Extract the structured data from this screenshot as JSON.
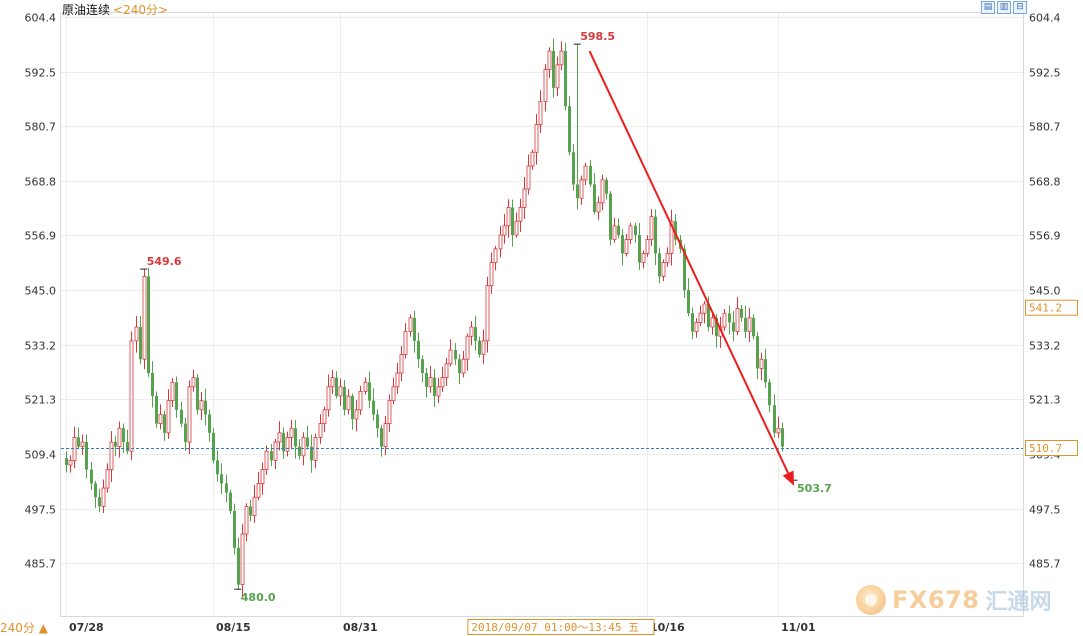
{
  "header": {
    "instrument": "原油连续",
    "period": "<240分>",
    "toolbar_icons": [
      "chart-type-icon",
      "indicator-icon",
      "zoom-icon"
    ]
  },
  "period_selector": {
    "label": "240分",
    "arrow": "▲"
  },
  "watermark": {
    "brand": "FX678",
    "cn": "汇通网"
  },
  "colors": {
    "up": "#d8383b",
    "down": "#55a34f",
    "grid": "#ececec",
    "current_line": "#2b7fc1",
    "arrow": "#ee1c1c",
    "axis_text": "#333333",
    "accent": "#e0932d"
  },
  "chart_data": {
    "type": "candlestick",
    "ylim": [
      475.0,
      607.0
    ],
    "y_ticks": [
      "604.4",
      "592.5",
      "580.7",
      "568.8",
      "556.9",
      "545.0",
      "533.2",
      "521.3",
      "509.4",
      "497.5",
      "485.7"
    ],
    "y_tick_values": [
      604.4,
      592.5,
      580.7,
      568.8,
      556.9,
      545.0,
      533.2,
      521.3,
      509.4,
      497.5,
      485.7
    ],
    "x_labels": [
      {
        "label": "07/28",
        "bar": 0
      },
      {
        "label": "08/15",
        "bar": 36
      },
      {
        "label": "08/31",
        "bar": 67
      },
      {
        "label": "10/16",
        "bar": 142
      },
      {
        "label": "11/01",
        "bar": 174
      }
    ],
    "crosshair_label": "2018/09/07 01:00～13:45 五",
    "crosshair_bar": 82,
    "current_price": 510.7,
    "current_price_label": "510.7",
    "hover_price": 541.2,
    "hover_price_label": "541.2",
    "annotations": [
      {
        "label": "549.6",
        "bar": 19,
        "value": 549.6,
        "kind": "high"
      },
      {
        "label": "480.0",
        "bar": 42,
        "value": 480.0,
        "kind": "low"
      },
      {
        "label": "598.5",
        "bar": 125,
        "value": 598.5,
        "kind": "high"
      },
      {
        "label": "503.7",
        "bar": 178,
        "value": 503.7,
        "kind": "low"
      }
    ],
    "trend_arrow": {
      "from": {
        "bar": 128,
        "value": 597.0
      },
      "to": {
        "bar": 178,
        "value": 502.5
      }
    },
    "closes": [
      507,
      508,
      513,
      511,
      512,
      506,
      503,
      500,
      498,
      502,
      506,
      512,
      511,
      515,
      512,
      510,
      534,
      537,
      530,
      548,
      527,
      522,
      516,
      518,
      514,
      521,
      525,
      519,
      516,
      512,
      524,
      526,
      519,
      521,
      518,
      514,
      508,
      505,
      503,
      501,
      497,
      489,
      481,
      492,
      498,
      496,
      500,
      503,
      506,
      510,
      508,
      512,
      514,
      510,
      513,
      515,
      511,
      509,
      513,
      511,
      508,
      513,
      516,
      519,
      524,
      526,
      522,
      524,
      519,
      522,
      517,
      519,
      523,
      525,
      521,
      518,
      515,
      511,
      516,
      521,
      524,
      527,
      531,
      536,
      539,
      534,
      530,
      527,
      524,
      526,
      522,
      524,
      526,
      529,
      532,
      530,
      527,
      530,
      535,
      537,
      534,
      531,
      534,
      546,
      551,
      554,
      557,
      559,
      563,
      557,
      560,
      563,
      567,
      572,
      575,
      581,
      586,
      593,
      597,
      589,
      594,
      597,
      585,
      575,
      568,
      565,
      569,
      572,
      568,
      562,
      564,
      569,
      566,
      556,
      559,
      557,
      553,
      556,
      559,
      557,
      551,
      553,
      556,
      561,
      553,
      548,
      551,
      553,
      560,
      556,
      554,
      545,
      540,
      536,
      538,
      540,
      542,
      537,
      539,
      535,
      537,
      540,
      538,
      536,
      541,
      539,
      536,
      539,
      535,
      528,
      530,
      525,
      520,
      514,
      515,
      511
    ]
  }
}
